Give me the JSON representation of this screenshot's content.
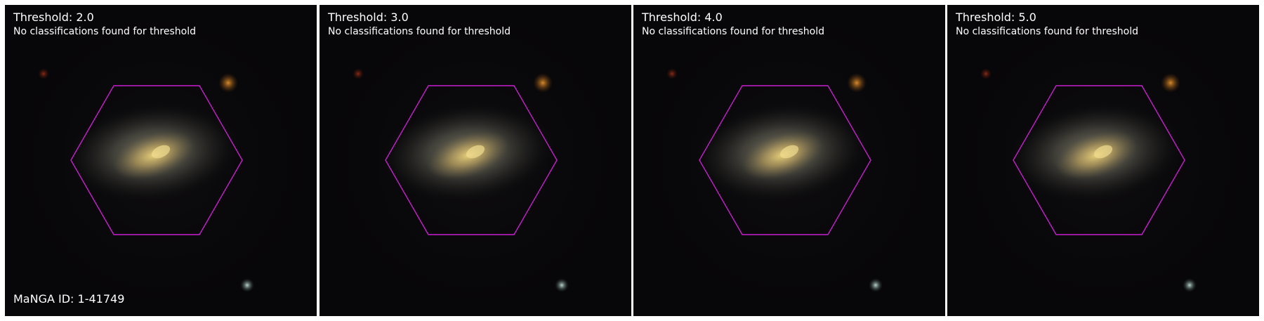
{
  "figure": {
    "manga_id": "MaNGA ID: 1-41749",
    "no_class_message": "No classifications found for threshold",
    "hexagon_color": "#c81ecf",
    "panels": [
      {
        "title": "Threshold: 2.0",
        "subtitle": "No classifications found for threshold"
      },
      {
        "title": "Threshold: 3.0",
        "subtitle": "No classifications found for threshold"
      },
      {
        "title": "Threshold: 4.0",
        "subtitle": "No classifications found for threshold"
      },
      {
        "title": "Threshold: 5.0",
        "subtitle": "No classifications found for threshold"
      }
    ]
  }
}
